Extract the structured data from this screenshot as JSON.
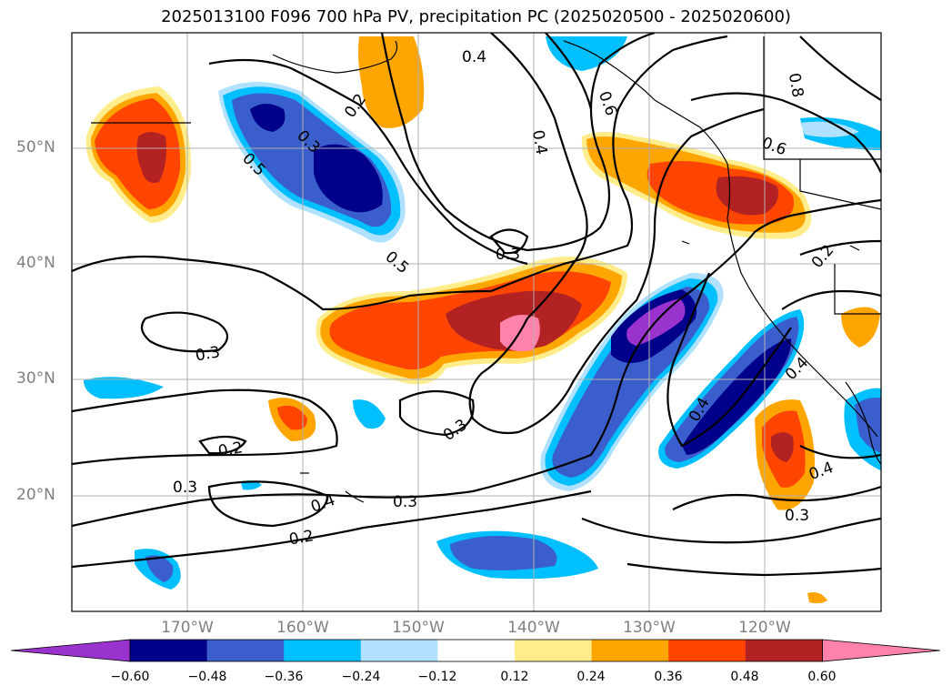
{
  "title": "2025013100 F096 700 hPa PV, precipitation PC (2025020500 - 2025020600)",
  "lat_labels": [
    "50°N",
    "40°N",
    "30°N",
    "20°N"
  ],
  "lon_labels": [
    "170°W",
    "160°W",
    "150°W",
    "140°W",
    "130°W",
    "120°W"
  ],
  "contour_labels": [
    "0.4",
    "0.2",
    "0.3",
    "0.5",
    "0.4",
    "0.6",
    "0.5",
    "0.3",
    "0.3",
    "0.2",
    "0.3",
    "0.3",
    "0.4",
    "0.3",
    "0.2",
    "0.4",
    "0.4",
    "0.3",
    "0.8",
    "0.6",
    "0.2",
    "0.4"
  ],
  "colorbar": {
    "ticks": [
      "−0.60",
      "−0.48",
      "−0.36",
      "−0.24",
      "−0.12",
      "0.12",
      "0.24",
      "0.36",
      "0.48",
      "0.60"
    ],
    "colors": [
      "#9a32cd",
      "#00008b",
      "#3a5fcd",
      "#00bfff",
      "#b0e2ff",
      "#ffffff",
      "#ffec8b",
      "#ffa500",
      "#ff4500",
      "#b22222",
      "#ff82ab"
    ]
  },
  "lat_range": [
    10,
    60
  ],
  "lon_range": [
    -180,
    -110
  ]
}
